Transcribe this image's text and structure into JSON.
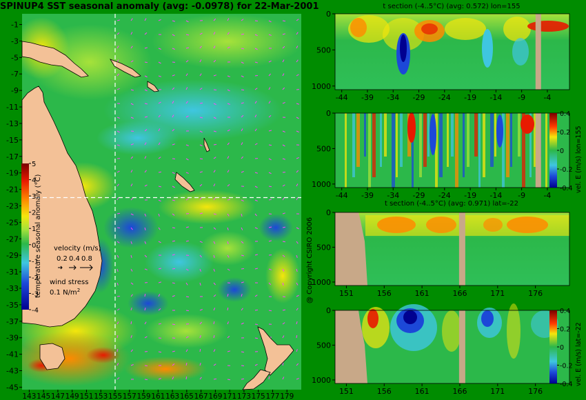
{
  "title": "SPINUP4 SST seasonal anomaly (avg: -0.0978) for 22-Mar-2001",
  "copyright": "@ Copyright CSIRO 2006",
  "colors": {
    "background": "#008c00",
    "land": "#f3c197",
    "section_land": "#c8a888",
    "ocean": "#2cb84a",
    "guide": "#ffffff",
    "wind": "#ff44ff"
  },
  "chart_data": [
    {
      "type": "heatmap",
      "name": "map",
      "x_ticks": [
        143,
        145,
        147,
        149,
        151,
        153,
        155,
        157,
        159,
        161,
        163,
        165,
        167,
        169,
        171,
        173,
        175,
        177,
        179
      ],
      "y_ticks": [
        -1,
        -3,
        -5,
        -7,
        -9,
        -11,
        -13,
        -15,
        -17,
        -19,
        -21,
        -23,
        -25,
        -27,
        -29,
        -31,
        -33,
        -35,
        -37,
        -39,
        -41,
        -43,
        -45
      ],
      "xlim": [
        142,
        181
      ],
      "ylim": [
        -45.3,
        0.3
      ],
      "guides": {
        "lon": 155,
        "lat": -22
      },
      "colorbar": {
        "label": "temperature seasonal anomaly (°C)",
        "ticks": [
          5,
          4,
          3,
          2,
          1,
          0,
          -1,
          -2,
          -3,
          -4
        ],
        "range": [
          -4,
          5
        ]
      },
      "velocity_legend": {
        "label": "velocity (m/s)",
        "values": [
          "0.2",
          "0.4",
          "0.8"
        ]
      },
      "wind_legend": {
        "label": "wind stress",
        "value": "0.1 N/m",
        "exponent": "2"
      }
    },
    {
      "type": "heatmap",
      "name": "t-section-lon",
      "title": "t section (-4..5°C) (avg: 0.572) lon=155",
      "x_ticks": [
        -44,
        -39,
        -34,
        -29,
        -24,
        -19,
        -14,
        -9,
        -4
      ],
      "xlim": [
        -45.3,
        0.3
      ],
      "y_ticks": [
        0,
        500,
        1000
      ],
      "ylim": [
        0,
        1050
      ]
    },
    {
      "type": "heatmap",
      "name": "vel-section-lon",
      "title": "",
      "x_ticks": [
        -44,
        -39,
        -34,
        -29,
        -24,
        -19,
        -14,
        -9,
        -4
      ],
      "xlim": [
        -45.3,
        0.3
      ],
      "y_ticks": [
        0,
        500,
        1000
      ],
      "ylim": [
        0,
        1050
      ],
      "colorbar": {
        "label": "vel. E (m/s) lon=155",
        "ticks": [
          "0.4",
          "0.2",
          "0",
          "-0.2",
          "-0.4"
        ],
        "range": [
          -0.4,
          0.4
        ]
      }
    },
    {
      "type": "heatmap",
      "name": "t-section-lat",
      "title": "t section (-4..5°C) (avg: 0.971) lat=-22",
      "x_ticks": [
        151,
        156,
        161,
        166,
        171,
        176
      ],
      "xlim": [
        149.5,
        180.5
      ],
      "y_ticks": [
        0,
        500,
        1000
      ],
      "ylim": [
        0,
        1050
      ]
    },
    {
      "type": "heatmap",
      "name": "vel-section-lat",
      "title": "",
      "x_ticks": [
        151,
        156,
        161,
        166,
        171,
        176
      ],
      "xlim": [
        149.5,
        180.5
      ],
      "y_ticks": [
        0,
        500,
        1000
      ],
      "ylim": [
        0,
        1050
      ],
      "colorbar": {
        "label": "vel. E (m/s) lat=-22",
        "ticks": [
          "0.4",
          "0.2",
          "0",
          "-0.2",
          "-0.4"
        ],
        "range": [
          -0.4,
          0.4
        ]
      }
    }
  ]
}
